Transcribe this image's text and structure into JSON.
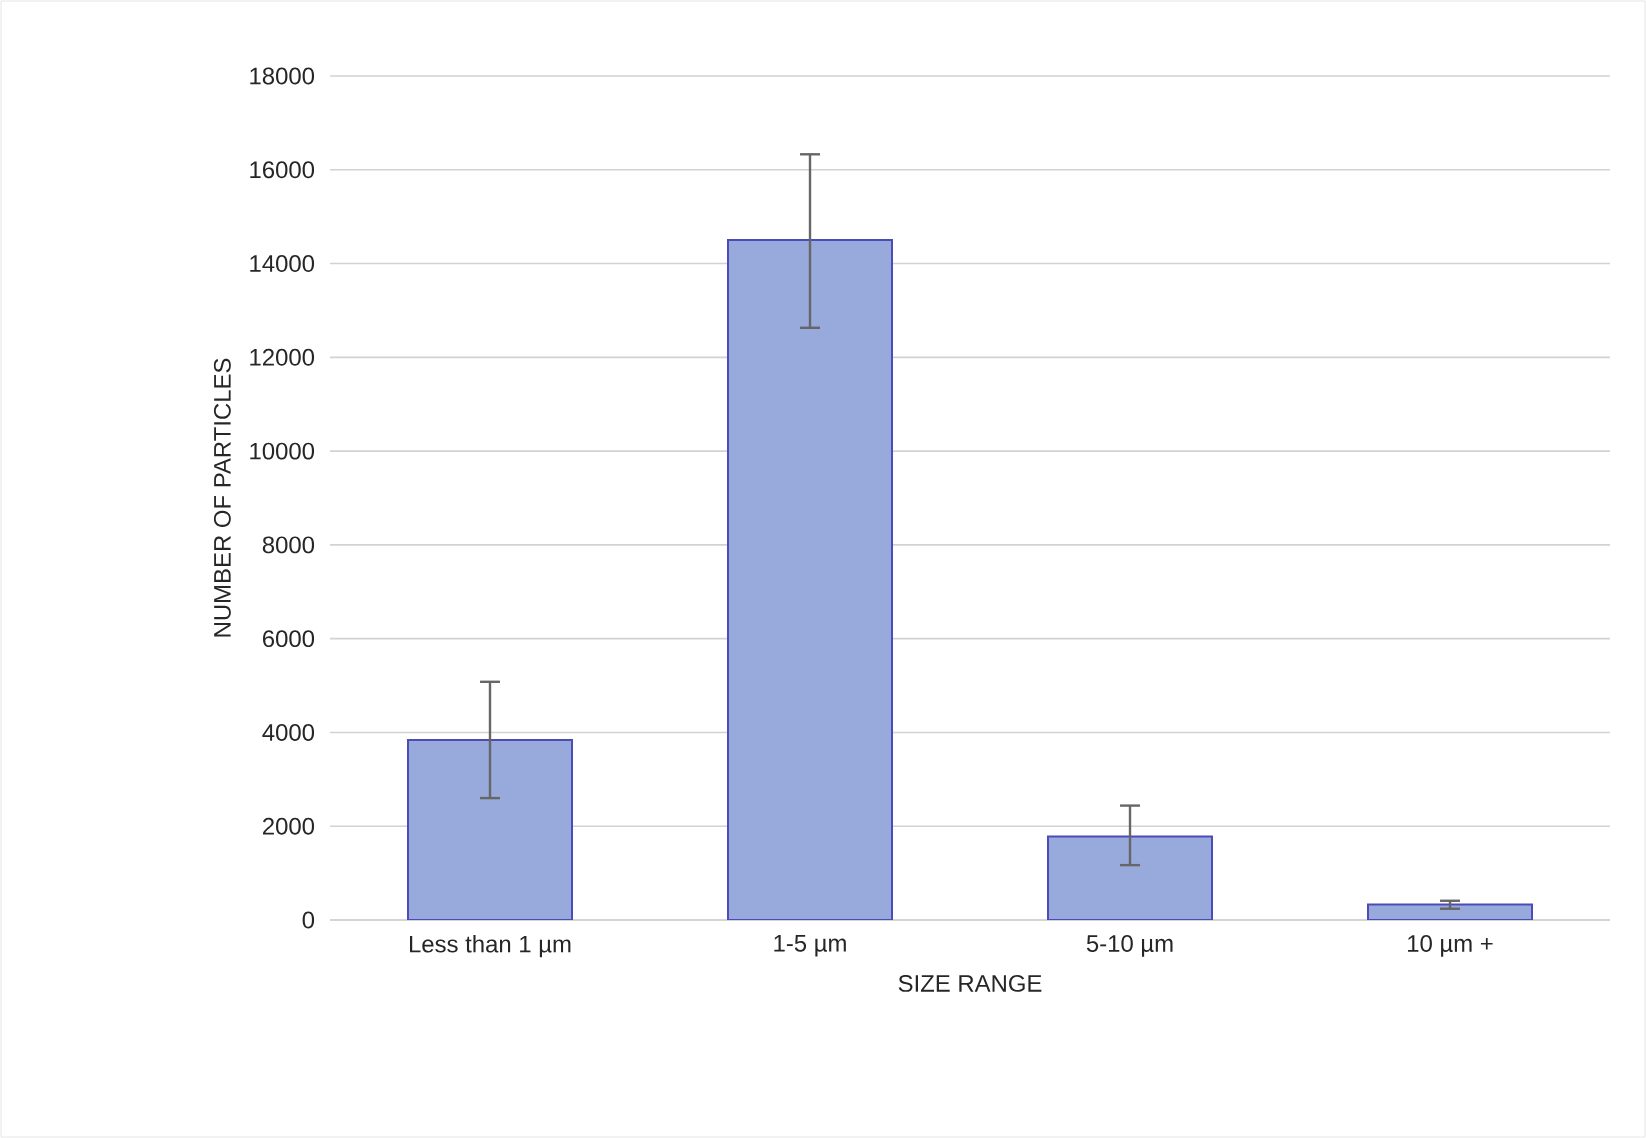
{
  "chart_data": {
    "type": "bar",
    "xlabel": "SIZE RANGE",
    "ylabel": "NUMBER OF PARTICLES",
    "categories": [
      "Less than 1 µm",
      "1-5  µm",
      "5-10  µm",
      "10 µm +"
    ],
    "values": [
      3840,
      14500,
      1780,
      330
    ],
    "errors": [
      [
        2600,
        5080
      ],
      [
        12630,
        16330
      ],
      [
        1170,
        2440
      ],
      [
        240,
        410
      ]
    ],
    "color": "#98aadc",
    "ylim": [
      0,
      18000
    ],
    "yticks": [
      0,
      2000,
      4000,
      6000,
      8000,
      10000,
      12000,
      14000,
      16000,
      18000
    ],
    "grid": "y"
  }
}
